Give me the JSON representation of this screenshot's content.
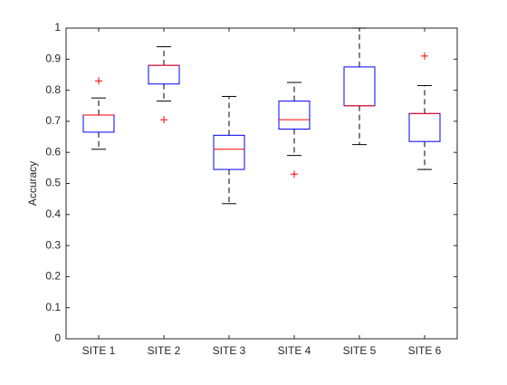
{
  "chart_data": {
    "type": "box",
    "title": "",
    "xlabel": "",
    "ylabel": "Accuracy",
    "ylim": [
      0,
      1
    ],
    "yticks": [
      0,
      0.1,
      0.2,
      0.3,
      0.4,
      0.5,
      0.6,
      0.7,
      0.8,
      0.9,
      1
    ],
    "ytick_labels": [
      "0",
      "0.1",
      "0.2",
      "0.3",
      "0.4",
      "0.5",
      "0.6",
      "0.7",
      "0.8",
      "0.9",
      "1"
    ],
    "grid": false,
    "categories": [
      "SITE 1",
      "SITE 2",
      "SITE 3",
      "SITE 4",
      "SITE 5",
      "SITE 6"
    ],
    "boxes": [
      {
        "category": "SITE 1",
        "whisker_low": 0.61,
        "q1": 0.665,
        "median": 0.72,
        "q3": 0.72,
        "whisker_high": 0.775,
        "outliers": [
          0.83
        ]
      },
      {
        "category": "SITE 2",
        "whisker_low": 0.765,
        "q1": 0.82,
        "median": 0.88,
        "q3": 0.88,
        "whisker_high": 0.94,
        "outliers": [
          0.705
        ]
      },
      {
        "category": "SITE 3",
        "whisker_low": 0.435,
        "q1": 0.545,
        "median": 0.61,
        "q3": 0.655,
        "whisker_high": 0.78,
        "outliers": []
      },
      {
        "category": "SITE 4",
        "whisker_low": 0.59,
        "q1": 0.675,
        "median": 0.705,
        "q3": 0.765,
        "whisker_high": 0.825,
        "outliers": [
          0.53
        ]
      },
      {
        "category": "SITE 5",
        "whisker_low": 0.625,
        "q1": 0.75,
        "median": 0.75,
        "q3": 0.875,
        "whisker_high": 1.0,
        "outliers": []
      },
      {
        "category": "SITE 6",
        "whisker_low": 0.545,
        "q1": 0.635,
        "median": 0.725,
        "q3": 0.725,
        "whisker_high": 0.815,
        "outliers": [
          0.91
        ]
      }
    ],
    "colors": {
      "box": "#0000ff",
      "median": "#ff0000",
      "whisker": "#000000",
      "outlier": "#ff0000",
      "axes": "#262626"
    }
  }
}
